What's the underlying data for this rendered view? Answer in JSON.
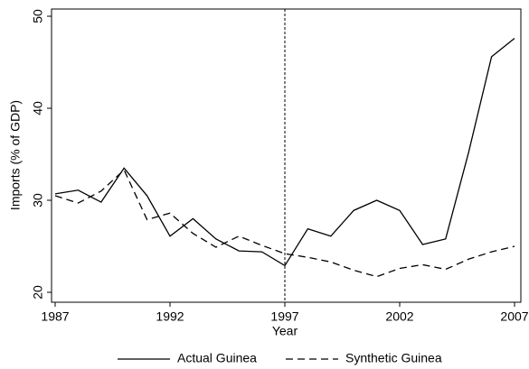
{
  "chart_data": {
    "type": "line",
    "x": [
      1987,
      1988,
      1989,
      1990,
      1991,
      1992,
      1993,
      1994,
      1995,
      1996,
      1997,
      1998,
      1999,
      2000,
      2001,
      2002,
      2003,
      2004,
      2005,
      2006,
      2007
    ],
    "series": [
      {
        "name": "Actual Guinea",
        "color": "#000000",
        "line_style": "solid",
        "values": [
          30.7,
          31.1,
          29.8,
          33.5,
          30.5,
          26.1,
          28.0,
          25.8,
          24.5,
          24.4,
          22.9,
          26.9,
          26.1,
          28.9,
          30.0,
          28.9,
          25.2,
          25.8,
          35.2,
          45.6,
          47.6
        ]
      },
      {
        "name": "Synthetic Guinea",
        "color": "#000000",
        "line_style": "dashed",
        "values": [
          30.5,
          29.7,
          31.0,
          33.3,
          27.9,
          28.6,
          26.4,
          24.9,
          26.1,
          25.1,
          24.2,
          23.8,
          23.3,
          22.4,
          21.7,
          22.6,
          23.0,
          22.5,
          23.6,
          24.4,
          25.0
        ]
      }
    ],
    "xlabel": "Year",
    "ylabel": "Imports (% of GDP)",
    "xlim": [
      1987,
      2007
    ],
    "xticks": [
      1987,
      1992,
      1997,
      2002,
      2007
    ],
    "ylim": [
      20,
      50
    ],
    "yticks": [
      20,
      30,
      40,
      50
    ],
    "vline": 1997,
    "legend": "bottom",
    "grid": false
  }
}
